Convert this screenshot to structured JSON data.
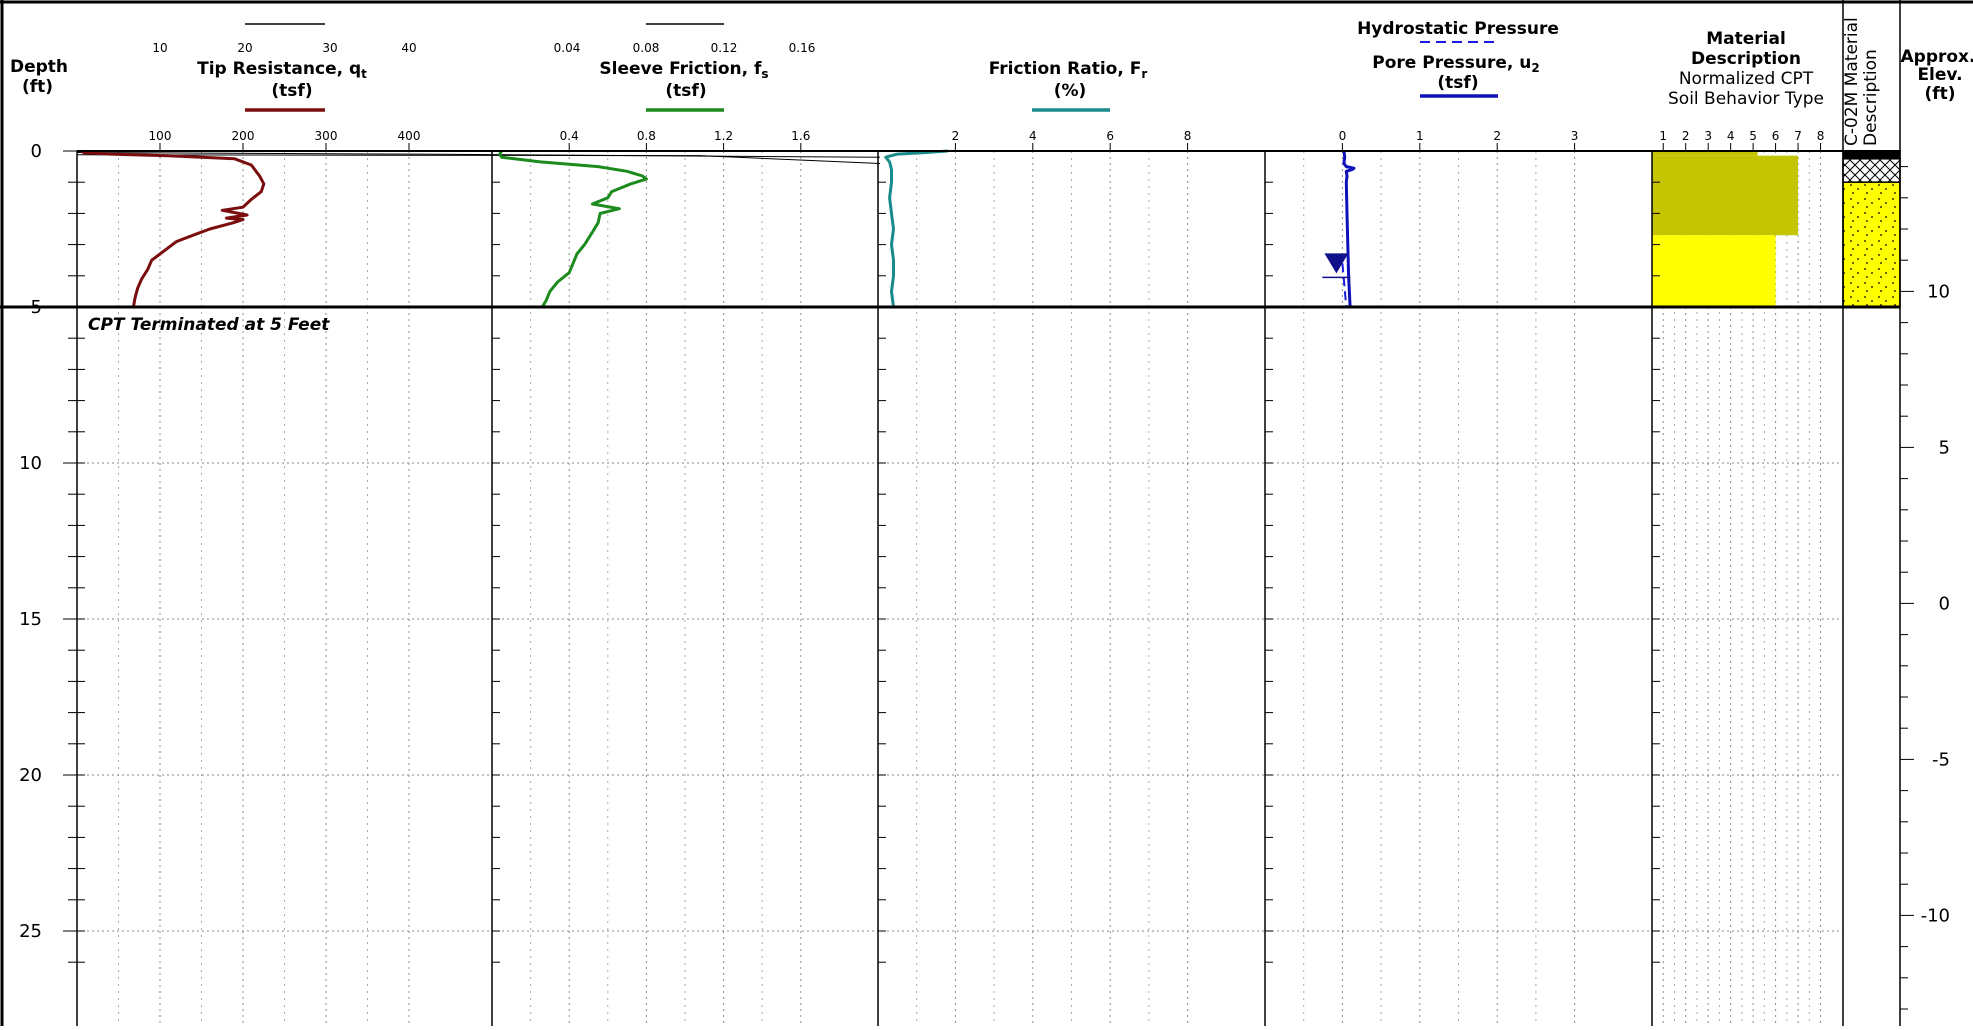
{
  "header": {
    "depth_label": "Depth",
    "depth_unit": "(ft)",
    "elev_label": "Approx.",
    "elev_label2": "Elev.",
    "elev_unit": "(ft)",
    "log_label": "C-02M Material",
    "log_label2": "Description"
  },
  "colors": {
    "tip": "#7a0e0e",
    "sleeve": "#1c8a1c",
    "ratio": "#1a8a8a",
    "pore": "#1010b8",
    "hydro": "#1a1ae0",
    "soil_olive": "#c4c400",
    "soil_yellow": "#ffff00"
  },
  "termination_note": "CPT Terminated at 5 Feet",
  "chart_data": [
    {
      "type": "line",
      "name": "tip-resistance",
      "title": "Tip Resistance, q",
      "title_sub": "t",
      "unit": "(tsf)",
      "xlim": [
        0,
        500
      ],
      "secondary_xlim": [
        0,
        50
      ],
      "ticks": [
        "100",
        "200",
        "300",
        "400"
      ],
      "secondary_ticks": [
        "10",
        "20",
        "30",
        "40"
      ],
      "ylim": [
        0,
        27
      ],
      "series": [
        {
          "depth": [
            0,
            0.05,
            0.1,
            0.15,
            0.25,
            0.45,
            0.8,
            1.05,
            1.3,
            1.55,
            1.8,
            1.9,
            2.0,
            2.05,
            2.15,
            2.2,
            2.3,
            2.5,
            2.7,
            2.9,
            3.1,
            3.3,
            3.5,
            3.8,
            4.1,
            4.4,
            4.7,
            5.0
          ],
          "values": [
            5,
            8,
            40,
            110,
            190,
            210,
            220,
            225,
            222,
            210,
            200,
            175,
            195,
            205,
            180,
            200,
            188,
            160,
            140,
            120,
            110,
            100,
            90,
            85,
            78,
            73,
            70,
            68
          ]
        }
      ]
    },
    {
      "type": "line",
      "name": "sleeve-friction",
      "title": "Sleeve Friction, f",
      "title_sub": "s",
      "unit": "(tsf)",
      "xlim": [
        0,
        2.0
      ],
      "secondary_xlim": [
        0,
        0.2
      ],
      "ticks": [
        "0.4",
        "0.8",
        "1.2",
        "1.6"
      ],
      "secondary_ticks": [
        "0.04",
        "0.08",
        "0.12",
        "0.16"
      ],
      "ylim": [
        0,
        27
      ],
      "series": [
        {
          "depth": [
            0,
            0.1,
            0.2,
            0.35,
            0.5,
            0.65,
            0.8,
            0.9,
            1.05,
            1.3,
            1.5,
            1.7,
            1.85,
            2.0,
            2.3,
            2.6,
            3.0,
            3.3,
            3.6,
            3.9,
            4.2,
            4.5,
            4.8,
            5.0
          ],
          "values": [
            0.05,
            0.04,
            0.05,
            0.25,
            0.55,
            0.7,
            0.78,
            0.8,
            0.72,
            0.62,
            0.6,
            0.52,
            0.66,
            0.56,
            0.55,
            0.52,
            0.48,
            0.44,
            0.42,
            0.4,
            0.34,
            0.3,
            0.28,
            0.26
          ]
        }
      ]
    },
    {
      "type": "line",
      "name": "friction-ratio",
      "title": "Friction Ratio, F",
      "title_sub": "r",
      "unit": "(%)",
      "xlim": [
        0,
        10
      ],
      "ticks": [
        "2",
        "4",
        "6",
        "8"
      ],
      "ylim": [
        0,
        27
      ],
      "series": [
        {
          "depth": [
            0,
            0.05,
            0.1,
            0.2,
            0.35,
            0.6,
            1.0,
            1.5,
            2.0,
            2.5,
            3.0,
            3.5,
            4.0,
            4.5,
            5.0
          ],
          "values": [
            1.8,
            1.2,
            0.5,
            0.2,
            0.3,
            0.35,
            0.35,
            0.3,
            0.35,
            0.4,
            0.35,
            0.4,
            0.4,
            0.35,
            0.4
          ]
        }
      ]
    },
    {
      "type": "line",
      "name": "pore-pressure",
      "title": "Pore Pressure, u",
      "title_sub": "2",
      "unit": "(tsf)",
      "top_label": "Hydrostatic Pressure",
      "xlim": [
        -1,
        4
      ],
      "ticks": [
        "0",
        "1",
        "2",
        "3"
      ],
      "ylim": [
        0,
        27
      ],
      "water_table_depth": 3.6,
      "series": [
        {
          "depth": [
            0,
            0.2,
            0.4,
            0.5,
            0.55,
            0.6,
            0.65,
            0.8,
            1.0,
            2.0,
            3.0,
            4.0,
            5.0
          ],
          "values": [
            0.02,
            0.03,
            0.02,
            0.05,
            0.15,
            0.12,
            0.05,
            0.06,
            0.05,
            0.06,
            0.07,
            0.08,
            0.1
          ]
        },
        {
          "depth": [
            3.6,
            5.0
          ],
          "values": [
            0,
            0.05
          ]
        }
      ]
    },
    {
      "type": "bar",
      "name": "soil-behavior-type",
      "title": "Material",
      "title2": "Description",
      "subtitle": "Normalized CPT",
      "subtitle2": "Soil Behavior Type",
      "xlim": [
        0.5,
        9
      ],
      "ticks": [
        "1",
        "2",
        "3",
        "4",
        "5",
        "6",
        "7",
        "8"
      ],
      "ylim": [
        0,
        27
      ],
      "layers": [
        {
          "top": 0,
          "bottom": 0.15,
          "value": 5.2,
          "color": "#c4c400"
        },
        {
          "top": 0.15,
          "bottom": 2.7,
          "value": 7.0,
          "color": "#c4c400"
        },
        {
          "top": 2.7,
          "bottom": 5.0,
          "value": 6.0,
          "color": "#ffff00"
        }
      ]
    },
    {
      "type": "table",
      "name": "material-log",
      "layers": [
        {
          "top": 0,
          "bottom": 0.25,
          "pattern": "asphalt"
        },
        {
          "top": 0.25,
          "bottom": 1.0,
          "pattern": "fill"
        },
        {
          "top": 1.0,
          "bottom": 5.0,
          "pattern": "sand"
        }
      ]
    }
  ],
  "depth_axis": {
    "ylim": [
      0,
      27
    ],
    "ticks": [
      "0",
      "5",
      "10",
      "15",
      "20",
      "25"
    ],
    "elev_ticks": [
      "10",
      "5",
      "0",
      "-5",
      "-10"
    ],
    "elev_at_depth0": 14.5
  }
}
